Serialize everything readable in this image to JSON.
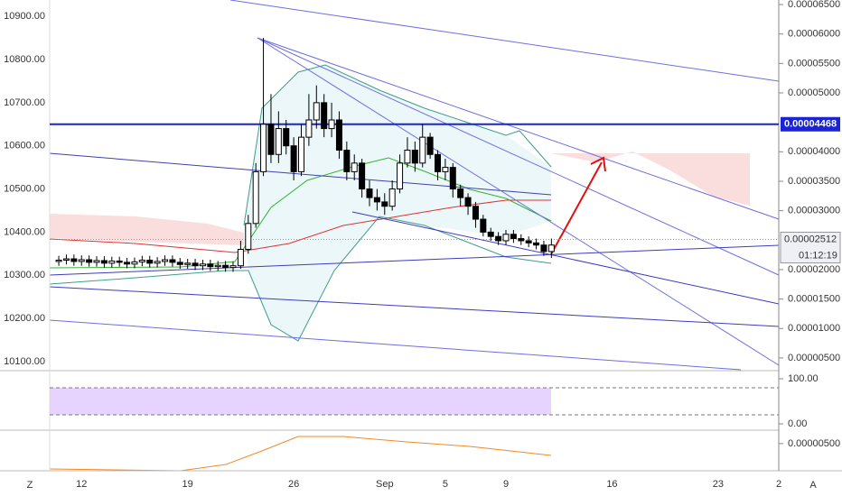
{
  "toolbar": {
    "left": "Z",
    "right": "A"
  },
  "chart_data": [
    {
      "type": "candlestick",
      "x": [
        10.5,
        11,
        11.5,
        12,
        12.5,
        13,
        13.5,
        14,
        14.5,
        15,
        15.5,
        16,
        16.5,
        17,
        17.5,
        18,
        18.5,
        19,
        19.5,
        20,
        20.5,
        21,
        21.5,
        22,
        22.5,
        23,
        23.5,
        24,
        24.5,
        25,
        25.5,
        26,
        26.5,
        27,
        27.5,
        28,
        28.5,
        29,
        29.5,
        30,
        30.5,
        31,
        31.5,
        32,
        32.5,
        33,
        33.5,
        34,
        34.5,
        35,
        35.5,
        36,
        36.5,
        37,
        37.5,
        38,
        38.5,
        39,
        39.5,
        40,
        40.5,
        41,
        41.5,
        42,
        42.5,
        43
      ],
      "open": [
        10332,
        10335,
        10338,
        10332,
        10336,
        10330,
        10334,
        10328,
        10333,
        10330,
        10326,
        10331,
        10335,
        10328,
        10332,
        10336,
        10330,
        10325,
        10328,
        10322,
        10326,
        10320,
        10323,
        10318,
        10322,
        10360,
        10420,
        10540,
        10650,
        10580,
        10640,
        10600,
        10540,
        10620,
        10660,
        10700,
        10640,
        10660,
        10590,
        10540,
        10560,
        10500,
        10480,
        10470,
        10460,
        10500,
        10560,
        10590,
        10560,
        10620,
        10580,
        10540,
        10550,
        10500,
        10480,
        10460,
        10430,
        10400,
        10390,
        10380,
        10395,
        10385,
        10380,
        10375,
        10370,
        10355
      ],
      "high": [
        10345,
        10348,
        10348,
        10346,
        10346,
        10344,
        10344,
        10343,
        10343,
        10340,
        10341,
        10345,
        10345,
        10342,
        10346,
        10346,
        10340,
        10338,
        10338,
        10336,
        10336,
        10333,
        10333,
        10332,
        10380,
        10440,
        10560,
        10850,
        10720,
        10680,
        10660,
        10620,
        10650,
        10720,
        10740,
        10720,
        10700,
        10680,
        10610,
        10580,
        10570,
        10520,
        10500,
        10490,
        10520,
        10580,
        10620,
        10610,
        10650,
        10630,
        10590,
        10570,
        10560,
        10510,
        10490,
        10470,
        10440,
        10410,
        10400,
        10405,
        10405,
        10395,
        10390,
        10385,
        10380,
        10385
      ],
      "low": [
        10322,
        10325,
        10322,
        10322,
        10320,
        10320,
        10318,
        10318,
        10320,
        10316,
        10316,
        10321,
        10318,
        10318,
        10322,
        10320,
        10315,
        10315,
        10312,
        10312,
        10310,
        10310,
        10308,
        10308,
        10315,
        10350,
        10410,
        10530,
        10560,
        10560,
        10580,
        10520,
        10530,
        10600,
        10640,
        10620,
        10620,
        10570,
        10520,
        10520,
        10480,
        10460,
        10450,
        10440,
        10450,
        10490,
        10550,
        10540,
        10550,
        10570,
        10520,
        10520,
        10480,
        10460,
        10440,
        10410,
        10390,
        10380,
        10370,
        10370,
        10375,
        10370,
        10365,
        10360,
        10345,
        10340
      ],
      "close": [
        10335,
        10338,
        10332,
        10336,
        10330,
        10334,
        10328,
        10333,
        10330,
        10326,
        10331,
        10335,
        10328,
        10332,
        10336,
        10330,
        10325,
        10328,
        10322,
        10326,
        10320,
        10323,
        10318,
        10322,
        10360,
        10420,
        10540,
        10650,
        10580,
        10640,
        10600,
        10540,
        10620,
        10660,
        10700,
        10640,
        10660,
        10590,
        10540,
        10560,
        10500,
        10480,
        10470,
        10460,
        10500,
        10560,
        10590,
        10560,
        10620,
        10580,
        10540,
        10550,
        10500,
        10480,
        10460,
        10430,
        10400,
        10390,
        10380,
        10395,
        10385,
        10380,
        10375,
        10370,
        10355,
        10370
      ],
      "up_color": "#ffffff",
      "down_color": "#000000",
      "xlim": [
        9.9,
        58
      ],
      "xticks": [
        {
          "value": 12,
          "label": "12"
        },
        {
          "value": 19,
          "label": "19"
        },
        {
          "value": 26,
          "label": "26"
        },
        {
          "value": 32,
          "label": "Sep"
        },
        {
          "value": 36,
          "label": "5"
        },
        {
          "value": 40,
          "label": "9"
        },
        {
          "value": 47,
          "label": "16"
        },
        {
          "value": 54,
          "label": "23"
        },
        {
          "value": 58,
          "label": "2"
        }
      ],
      "ylim": [
        10081,
        10938
      ],
      "yticks": [
        {
          "value": 10900,
          "label": "10900.00"
        },
        {
          "value": 10800,
          "label": "10800.00"
        },
        {
          "value": 10700,
          "label": "10700.00"
        },
        {
          "value": 10600,
          "label": "10600.00"
        },
        {
          "value": 10500,
          "label": "10500.00"
        },
        {
          "value": 10400,
          "label": "10400.00"
        },
        {
          "value": 10300,
          "label": "10300.00"
        },
        {
          "value": 10200,
          "label": "10200.00"
        },
        {
          "value": 10100,
          "label": "10100.00"
        }
      ],
      "y2lim": [
        3e-06,
        6.577e-05
      ],
      "y2ticks": [
        {
          "value": 6.5e-05,
          "label": "0.00006500"
        },
        {
          "value": 6e-05,
          "label": "0.00006000"
        },
        {
          "value": 5.5e-05,
          "label": "0.00005500"
        },
        {
          "value": 5e-05,
          "label": "0.00005000"
        },
        {
          "value": 4e-05,
          "label": "0.00004000"
        },
        {
          "value": 3.5e-05,
          "label": "0.00003500"
        },
        {
          "value": 3e-05,
          "label": "0.00003000"
        },
        {
          "value": 2e-05,
          "label": "0.00002000"
        },
        {
          "value": 1.5e-05,
          "label": "0.00001500"
        },
        {
          "value": 1e-05,
          "label": "0.00001000"
        },
        {
          "value": 5e-06,
          "label": "0.00000500"
        }
      ],
      "price_line": {
        "value": 4.468e-05,
        "label": "0.00004468",
        "color": "#1a23d6"
      },
      "last_price": {
        "value": 2.512e-05,
        "label": "0.00002512"
      },
      "countdown": "01:12:19"
    },
    {
      "type": "oscillator",
      "ylim": [
        -12,
        116
      ],
      "yticks": [
        {
          "value": 100,
          "label": "100.00"
        },
        {
          "value": 0,
          "label": "0.00"
        }
      ],
      "bands": [
        80,
        20
      ],
      "band_color": "#e1c8ff"
    },
    {
      "type": "indicator",
      "ylim": [
        0,
        7.3e-06
      ],
      "yticks": [
        {
          "value": 5e-06,
          "label": "0.00000500"
        }
      ]
    }
  ]
}
